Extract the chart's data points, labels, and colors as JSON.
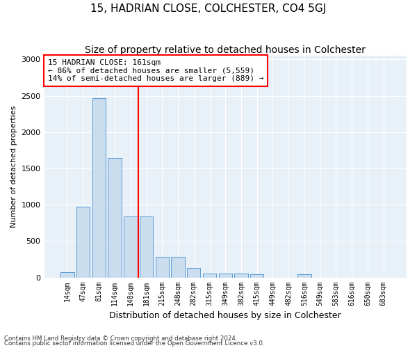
{
  "title": "15, HADRIAN CLOSE, COLCHESTER, CO4 5GJ",
  "subtitle": "Size of property relative to detached houses in Colchester",
  "xlabel": "Distribution of detached houses by size in Colchester",
  "ylabel": "Number of detached properties",
  "categories": [
    "14sqm",
    "47sqm",
    "81sqm",
    "114sqm",
    "148sqm",
    "181sqm",
    "215sqm",
    "248sqm",
    "282sqm",
    "315sqm",
    "349sqm",
    "382sqm",
    "415sqm",
    "449sqm",
    "482sqm",
    "516sqm",
    "549sqm",
    "583sqm",
    "616sqm",
    "650sqm",
    "683sqm"
  ],
  "values": [
    75,
    975,
    2470,
    1640,
    840,
    840,
    280,
    280,
    130,
    55,
    55,
    50,
    40,
    0,
    0,
    40,
    0,
    0,
    0,
    0,
    0
  ],
  "bar_color": "#c9ddef",
  "bar_edge_color": "#5b9bd5",
  "vline_x": 4.5,
  "vline_color": "red",
  "annotation_text": "15 HADRIAN CLOSE: 161sqm\n← 86% of detached houses are smaller (5,559)\n14% of semi-detached houses are larger (889) →",
  "annotation_box_color": "white",
  "annotation_box_edge_color": "red",
  "ylim": [
    0,
    3050
  ],
  "yticks": [
    0,
    500,
    1000,
    1500,
    2000,
    2500,
    3000
  ],
  "bg_color": "#e8f0f8",
  "footer_line1": "Contains HM Land Registry data © Crown copyright and database right 2024.",
  "footer_line2": "Contains public sector information licensed under the Open Government Licence v3.0.",
  "title_fontsize": 11,
  "subtitle_fontsize": 10,
  "xlabel_fontsize": 9,
  "ylabel_fontsize": 8,
  "bar_width": 0.85
}
